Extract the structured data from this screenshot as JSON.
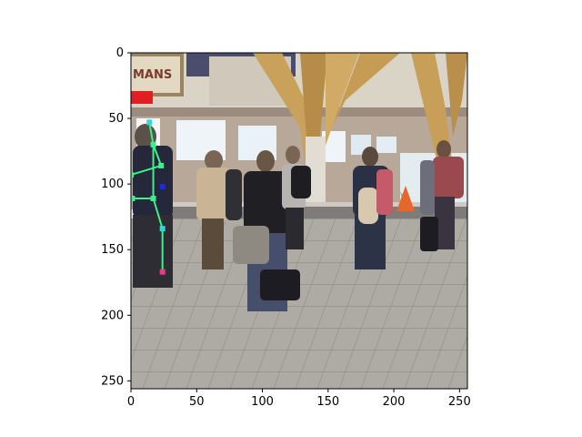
{
  "image": {
    "description_colors": {
      "sky_ceiling": "#d8d2c4",
      "floor": "#a8a59f",
      "wall": "#b7a79a",
      "beam": "#c9a15a",
      "skeleton_line": "#3ef08a",
      "joint_cyan": "#36d6d6",
      "joint_magenta": "#e83a8a",
      "joint_blue": "#1f2bd8"
    },
    "sign_text": "MANS",
    "pose_keypoints": [
      {
        "x": 14,
        "y": 53
      },
      {
        "x": 17,
        "y": 70
      },
      {
        "x": 23,
        "y": 86
      },
      {
        "x": 0,
        "y": 93
      },
      {
        "x": 24,
        "y": 102
      },
      {
        "x": 17,
        "y": 111
      },
      {
        "x": 1,
        "y": 111
      },
      {
        "x": 24,
        "y": 134
      },
      {
        "x": 24,
        "y": 167
      }
    ]
  },
  "axes": {
    "xlim": [
      0,
      256
    ],
    "ylim": [
      256,
      0
    ],
    "x_ticks": [
      0,
      50,
      100,
      150,
      200,
      250
    ],
    "y_ticks": [
      0,
      50,
      100,
      150,
      200,
      250
    ]
  }
}
